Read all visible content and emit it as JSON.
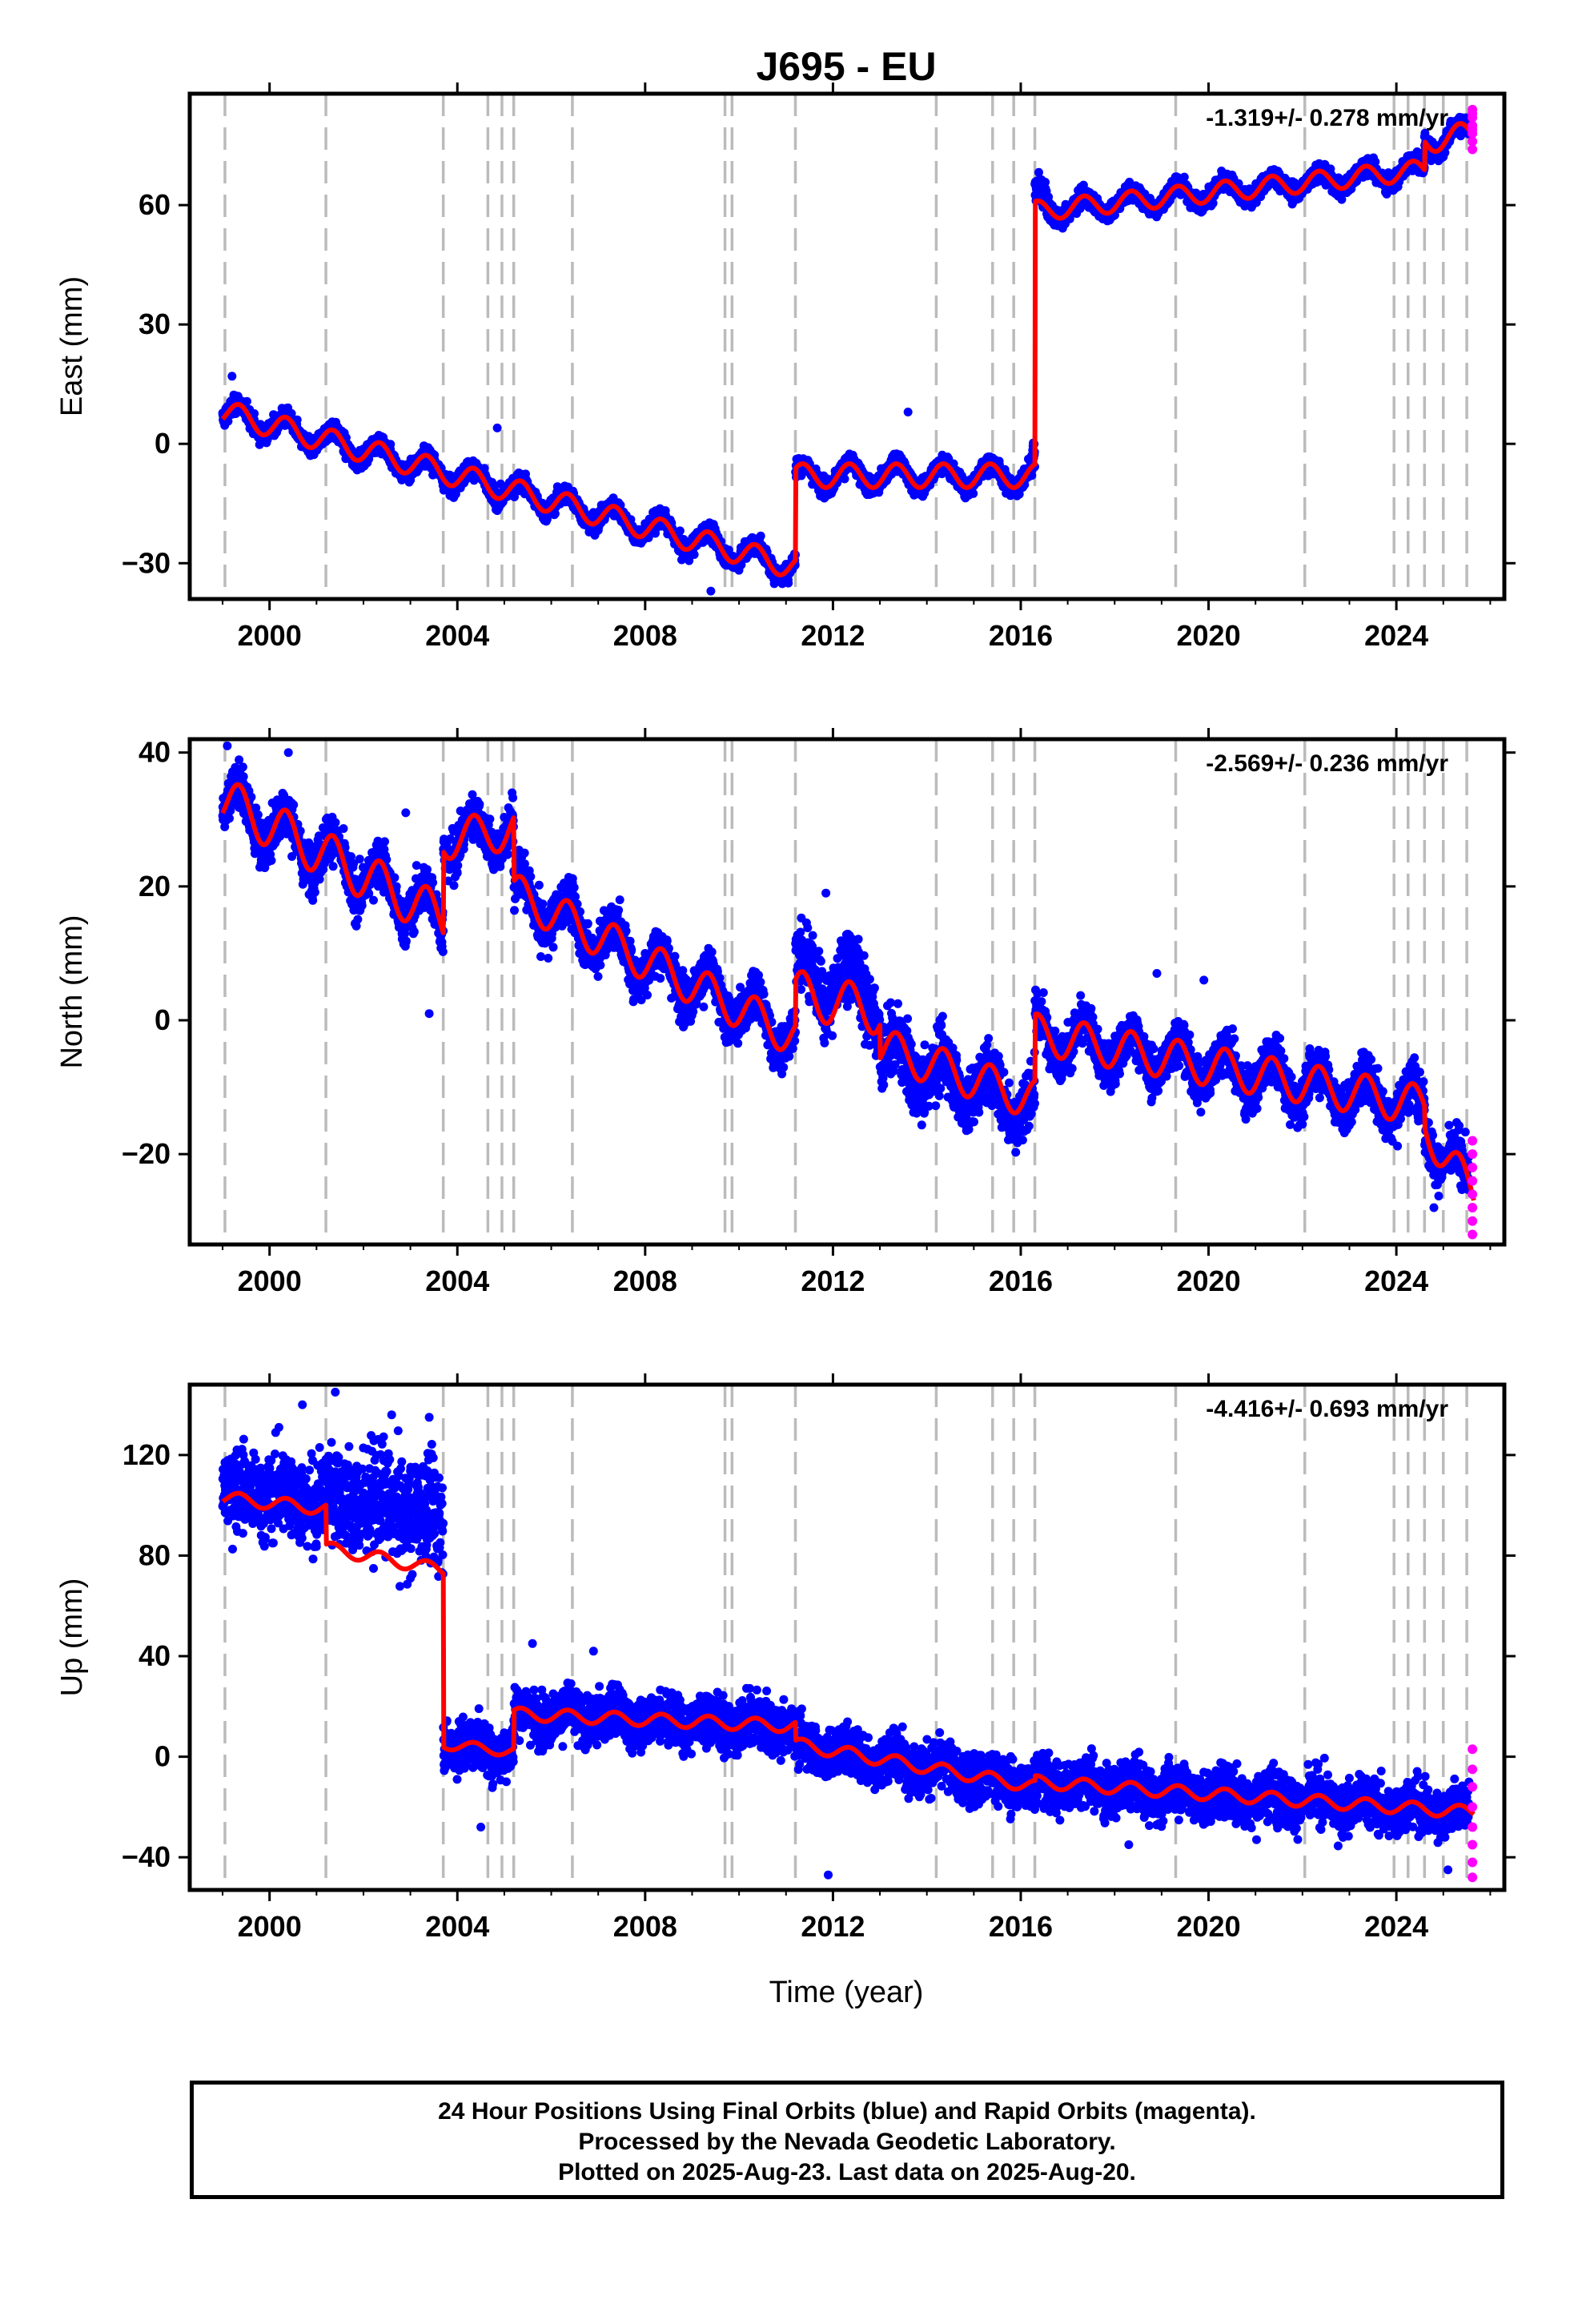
{
  "chart_data": {
    "type": "scatter",
    "title": "J695 - EU",
    "xlabel": "Time (year)",
    "xlim": [
      1998.3,
      2026.3
    ],
    "x_ticks": [
      2000,
      2004,
      2008,
      2012,
      2016,
      2020,
      2024
    ],
    "x_tick_labels": [
      "2000",
      "2004",
      "2008",
      "2012",
      "2016",
      "2020",
      "2024"
    ],
    "event_lines": [
      1999.05,
      2001.2,
      2003.7,
      2004.65,
      2004.95,
      2005.2,
      2006.45,
      2009.7,
      2009.85,
      2011.2,
      2014.2,
      2015.4,
      2015.85,
      2016.3,
      2019.3,
      2022.05,
      2023.95,
      2024.25,
      2024.6,
      2025.0,
      2025.5
    ],
    "series_colors": {
      "final": "#0000ff",
      "rapid": "#ff00ff",
      "model": "#ff0000",
      "event": "#bbbbbb"
    },
    "panels": [
      {
        "ylabel": "East (mm)",
        "rate": "-1.319+/- 0.278 mm/yr",
        "ylim": [
          -39,
          88
        ],
        "y_ticks": [
          -30,
          0,
          30,
          60
        ],
        "y_tick_labels": [
          "−30",
          "0",
          "30",
          "60"
        ],
        "noise": 1.6,
        "model": [
          {
            "t0": 1999.0,
            "t1": 2011.2,
            "a": 8.0,
            "b": -3.2,
            "amp": 3.0
          },
          {
            "t0": 2011.2,
            "t1": 2016.3,
            "a": -8.0,
            "b": 0.0,
            "amp": 3.0
          },
          {
            "t0": 2016.3,
            "t1": 2024.6,
            "a": 58.5,
            "b": 1.25,
            "amp": 2.5
          },
          {
            "t0": 2024.6,
            "t1": 2025.65,
            "a": 76.0,
            "b": 2.0,
            "amp": 3.0
          }
        ],
        "extra": [
          {
            "t0": 2016.25,
            "t1": 2016.55,
            "offset": 3.0,
            "scatter": 2.0
          }
        ],
        "rapid": {
          "t": 2025.62,
          "values": [
            84,
            82,
            80,
            78,
            76,
            74,
            79,
            83
          ]
        },
        "outliers": [
          [
            1999.2,
            17
          ],
          [
            2009.4,
            -37
          ],
          [
            2011.05,
            -35
          ],
          [
            2004.85,
            4
          ],
          [
            2013.6,
            8
          ]
        ]
      },
      {
        "ylabel": "North (mm)",
        "rate": "-2.569+/- 0.236 mm/yr",
        "ylim": [
          -33.5,
          42
        ],
        "y_ticks": [
          -20,
          0,
          20,
          40
        ],
        "y_tick_labels": [
          "−20",
          "0",
          "20",
          "40"
        ],
        "noise": 2.4,
        "model": [
          {
            "t0": 1999.0,
            "t1": 2003.7,
            "a": 33.0,
            "b": -3.8,
            "amp": 3.5
          },
          {
            "t0": 2003.7,
            "t1": 2005.2,
            "a": 27.0,
            "b": 1.0,
            "amp": 3.0
          },
          {
            "t0": 2005.2,
            "t1": 2011.2,
            "a": 19.0,
            "b": -3.6,
            "amp": 3.0
          },
          {
            "t0": 2011.2,
            "t1": 2013.0,
            "a": 4.0,
            "b": -1.5,
            "amp": 3.5
          },
          {
            "t0": 2013.0,
            "t1": 2016.3,
            "a": -4.0,
            "b": -2.4,
            "amp": 3.0
          },
          {
            "t0": 2016.3,
            "t1": 2024.6,
            "a": -2.0,
            "b": -1.3,
            "amp": 3.0
          },
          {
            "t0": 2024.6,
            "t1": 2025.65,
            "a": -16.0,
            "b": -9.5,
            "amp": 3.0
          }
        ],
        "extra": [
          {
            "t0": 2011.2,
            "t1": 2012.9,
            "offset": 3.0,
            "scatter": 2.5
          },
          {
            "t0": 2013.0,
            "t1": 2016.3,
            "offset": -1.0,
            "scatter": 2.0
          }
        ],
        "rapid": {
          "t": 2025.62,
          "values": [
            -18,
            -20,
            -22,
            -24,
            -26,
            -28,
            -30,
            -32
          ]
        },
        "outliers": [
          [
            1999.1,
            41
          ],
          [
            2000.4,
            40
          ],
          [
            2002.9,
            31
          ],
          [
            2003.4,
            1
          ],
          [
            2011.85,
            19
          ],
          [
            2018.9,
            7
          ],
          [
            2019.9,
            6
          ],
          [
            2020.7,
            -10
          ],
          [
            2024.8,
            -28
          ]
        ]
      },
      {
        "ylabel": "Up (mm)",
        "rate": "-4.416+/- 0.693 mm/yr",
        "ylim": [
          -53,
          148
        ],
        "y_ticks": [
          -40,
          0,
          40,
          80,
          120
        ],
        "y_tick_labels": [
          "−40",
          "0",
          "40",
          "80",
          "120"
        ],
        "noise": 7.0,
        "model": [
          {
            "t0": 1999.0,
            "t1": 2001.2,
            "a": 103.0,
            "b": -2.0,
            "amp": 2.5
          },
          {
            "t0": 2001.2,
            "t1": 2003.7,
            "a": 83.0,
            "b": -3.5,
            "amp": 2.5
          },
          {
            "t0": 2003.7,
            "t1": 2005.2,
            "a": 5.0,
            "b": -2.0,
            "amp": 2.0
          },
          {
            "t0": 2005.2,
            "t1": 2011.2,
            "a": 17.0,
            "b": -0.8,
            "amp": 2.5
          },
          {
            "t0": 2011.2,
            "t1": 2016.3,
            "a": 5.0,
            "b": -3.3,
            "amp": 2.5
          },
          {
            "t0": 2016.3,
            "t1": 2025.65,
            "a": -10.0,
            "b": -1.3,
            "amp": 2.5
          }
        ],
        "extra": [
          {
            "t0": 1999.0,
            "t1": 2003.7,
            "offset": 3.0,
            "scatter": 9.0
          },
          {
            "t0": 2001.2,
            "t1": 2003.7,
            "offset": 18.0,
            "scatter": 6.0
          }
        ],
        "rapid": {
          "t": 2025.62,
          "values": [
            3,
            -5,
            -12,
            -20,
            -28,
            -35,
            -42,
            -48
          ]
        },
        "outliers": [
          [
            2000.7,
            140
          ],
          [
            2001.4,
            145
          ],
          [
            2002.6,
            136
          ],
          [
            2003.4,
            135
          ],
          [
            2000.2,
            131
          ],
          [
            2004.5,
            -28
          ],
          [
            2011.9,
            -47
          ],
          [
            2003.0,
            71
          ],
          [
            2005.6,
            45
          ],
          [
            2006.9,
            42
          ],
          [
            2018.3,
            -35
          ],
          [
            2025.1,
            -45
          ]
        ]
      }
    ]
  },
  "footer": {
    "line1": "24 Hour Positions Using Final Orbits (blue) and Rapid Orbits (magenta).",
    "line2": "Processed by the Nevada Geodetic Laboratory.",
    "line3": "Plotted on 2025-Aug-23. Last data on 2025-Aug-20."
  }
}
